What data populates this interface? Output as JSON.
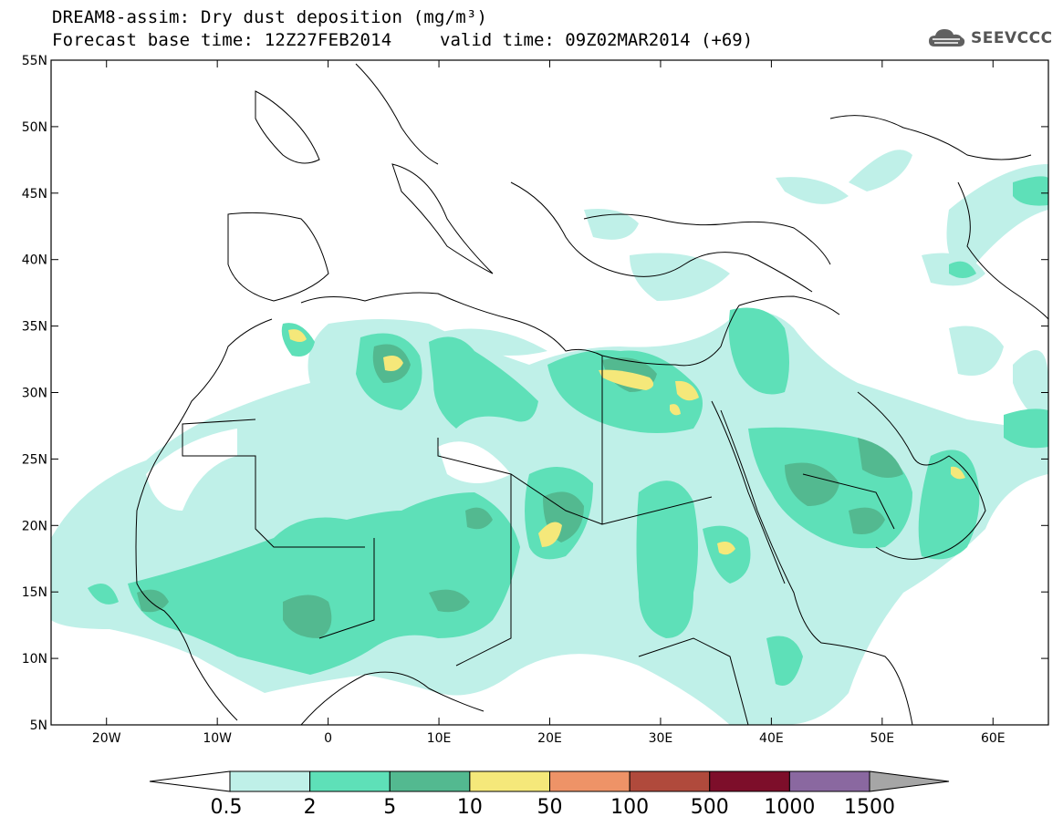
{
  "header": {
    "title_line1": "DREAM8-assim: Dry dust deposition (mg/m³)",
    "base_time": "Forecast base time: 12Z27FEB2014",
    "valid_time": "valid time: 09Z02MAR2014 (+69)"
  },
  "logo": {
    "text": "SEEVCCC",
    "icon": "cloud-logo-icon"
  },
  "axes": {
    "lat_labels": [
      "55N",
      "50N",
      "45N",
      "40N",
      "35N",
      "30N",
      "25N",
      "20N",
      "15N",
      "10N",
      "5N"
    ],
    "lon_labels": [
      "20W",
      "10W",
      "0",
      "10E",
      "20E",
      "30E",
      "40E",
      "50E",
      "60E"
    ],
    "lat_values": [
      55,
      50,
      45,
      40,
      35,
      30,
      25,
      20,
      15,
      10,
      5
    ],
    "lon_values": [
      -20,
      -10,
      0,
      10,
      20,
      30,
      40,
      50,
      60
    ],
    "lon_range": [
      -25,
      65
    ],
    "lat_range": [
      5,
      55
    ]
  },
  "colorbar": {
    "levels": [
      "0.5",
      "2",
      "5",
      "10",
      "50",
      "100",
      "500",
      "1000",
      "1500"
    ],
    "colors": [
      "#bff0e8",
      "#5ee0b8",
      "#53b990",
      "#f5e87a",
      "#ee9367",
      "#b04a3c",
      "#7d0e2a",
      "#8a68a0",
      "#a6a6a6"
    ],
    "under_color": "#ffffff"
  },
  "dust_colors": {
    "c1": "#bff0e8",
    "c2": "#5ee0b8",
    "c3": "#53b990",
    "c4": "#f5e87a"
  }
}
